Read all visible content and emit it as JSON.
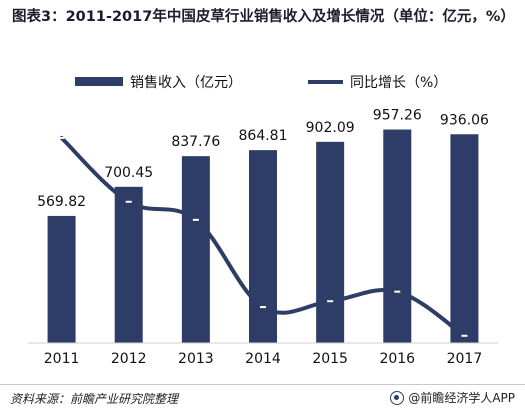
{
  "title": "图表3：2011-2017年中国皮草行业销售收入及增长情况（单位：亿元，%）",
  "legend": {
    "bar_label": "销售收入（亿元）",
    "line_label": "同比增长（%）"
  },
  "footer": {
    "source": "资料来源：前瞻产业研究院整理",
    "brand": "@前瞻经济学人APP"
  },
  "colors": {
    "bar": "#2e3c68",
    "line": "#2e3c68",
    "marker": "#ffffff"
  },
  "chart_data": {
    "type": "bar",
    "categories": [
      "2011",
      "2012",
      "2013",
      "2014",
      "2015",
      "2016",
      "2017"
    ],
    "series": [
      {
        "name": "销售收入（亿元）",
        "kind": "bar",
        "values": [
          569.82,
          700.45,
          837.76,
          864.81,
          902.09,
          957.26,
          936.06
        ]
      },
      {
        "name": "同比增长（%）",
        "kind": "line",
        "values": [
          35,
          23,
          19.6,
          3.2,
          4.3,
          6.1,
          -2.2
        ]
      }
    ],
    "bar_ylim": [
      0,
      1000
    ],
    "line_ylim": [
      -6,
      38
    ],
    "data_labels": [
      "569.82",
      "700.45",
      "837.76",
      "864.81",
      "902.09",
      "957.26",
      "936.06"
    ],
    "grid": false,
    "legend_position": "top"
  }
}
